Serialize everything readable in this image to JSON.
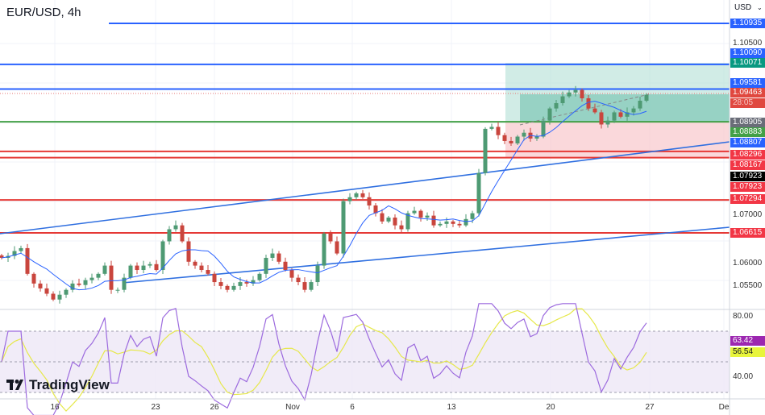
{
  "header": {
    "title": "EUR/USD, 4h",
    "currency": "USD",
    "currency_chevron": "chevron-down-icon"
  },
  "branding": {
    "logo_text": "TradingView"
  },
  "colors": {
    "bull": "#4e9a73",
    "bear": "#c9453d",
    "support_red": "#e53935",
    "resistance_blue": "#2962ff",
    "green_level": "#43a047",
    "ma": "#2962ff",
    "rsi": "#9c6ade",
    "rsi_ma": "#e6e84a"
  },
  "price_axis": [
    {
      "text": "1.10935",
      "style": "blue"
    },
    {
      "text": "1.10500",
      "style": "plain"
    },
    {
      "text": "1.10090",
      "style": "blue"
    },
    {
      "text": "1.10071",
      "style": "teal"
    },
    {
      "text": "1.09581",
      "style": "blue"
    },
    {
      "text": "1.09463",
      "style": "red-current"
    },
    {
      "text": "1.08905",
      "style": "grey"
    },
    {
      "text": "1.08883",
      "style": "green"
    },
    {
      "text": "1.08807",
      "style": "blue"
    },
    {
      "text": "1.08296",
      "style": "red"
    },
    {
      "text": "1.08167",
      "style": "red"
    },
    {
      "text": "1.07923",
      "style": "black"
    },
    {
      "text": "1.07923",
      "style": "red"
    },
    {
      "text": "1.07294",
      "style": "red"
    },
    {
      "text": "1.07000",
      "style": "plain"
    },
    {
      "text": "1.06615",
      "style": "red"
    },
    {
      "text": "1.06000",
      "style": "plain"
    },
    {
      "text": "1.05500",
      "style": "plain"
    }
  ],
  "countdown": "28:05",
  "rsi_axis": [
    {
      "text": "80.00",
      "style": "plain"
    },
    {
      "text": "63.42",
      "style": "purple"
    },
    {
      "text": "56.54",
      "style": "yellow"
    },
    {
      "text": "40.00",
      "style": "plain"
    }
  ],
  "time_axis": [
    "16",
    "23",
    "26",
    "Nov",
    "6",
    "13",
    "20",
    "27",
    "De"
  ],
  "chart_data": {
    "type": "candlestick",
    "symbol": "EUR/USD",
    "timeframe": "4h",
    "closes": [
      1.061,
      1.0614,
      1.0624,
      1.063,
      1.0577,
      1.0557,
      1.0547,
      1.0536,
      1.0524,
      1.0534,
      1.0544,
      1.0557,
      1.0554,
      1.0564,
      1.0569,
      1.0577,
      1.0594,
      1.0544,
      1.0544,
      1.0569,
      1.0594,
      1.0585,
      1.0594,
      1.0597,
      1.0585,
      1.0644,
      1.0669,
      1.0677,
      1.0644,
      1.0602,
      1.0594,
      1.0585,
      1.0577,
      1.056,
      1.0552,
      1.0544,
      1.0552,
      1.056,
      1.0557,
      1.0564,
      1.0577,
      1.061,
      1.0619,
      1.0602,
      1.0585,
      1.0569,
      1.056,
      1.0544,
      1.056,
      1.0594,
      1.066,
      1.0644,
      1.0619,
      1.0727,
      1.0735,
      1.0743,
      1.0735,
      1.0718,
      1.0702,
      1.0685,
      1.0693,
      1.0677,
      1.0669,
      1.0702,
      1.0707,
      1.0693,
      1.0697,
      1.0677,
      1.068,
      1.0685,
      1.068,
      1.0677,
      1.069,
      1.0702,
      1.0785,
      1.0876,
      1.088,
      1.0863,
      1.0851,
      1.0846,
      1.086,
      1.0868,
      1.0856,
      1.086,
      1.0893,
      1.0918,
      1.0929,
      1.0943,
      1.0951,
      1.0956,
      1.0939,
      1.0918,
      1.091,
      1.0885,
      1.0893,
      1.091,
      1.0901,
      1.091,
      1.0918,
      1.0934,
      1.0946
    ],
    "horizontal_levels": [
      {
        "price": 1.10935,
        "color": "blue"
      },
      {
        "price": 1.1009,
        "color": "blue"
      },
      {
        "price": 1.09581,
        "color": "blue"
      },
      {
        "price": 1.08905,
        "color": "green"
      },
      {
        "price": 1.08296,
        "color": "red"
      },
      {
        "price": 1.08167,
        "color": "red"
      },
      {
        "price": 1.07294,
        "color": "red"
      },
      {
        "price": 1.06615,
        "color": "red"
      }
    ],
    "indicators": [
      "moving-average",
      "RSI",
      "RSI-MA"
    ],
    "rsi_levels": [
      70,
      50,
      30
    ],
    "grid": true
  }
}
